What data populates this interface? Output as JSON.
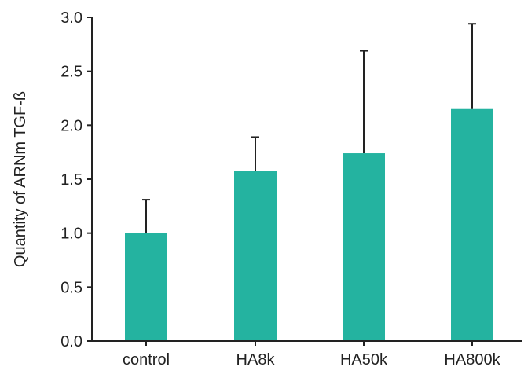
{
  "chart_data": {
    "type": "bar",
    "title": "",
    "xlabel": "",
    "ylabel": "Quantity of ARNm TGF-ß",
    "categories": [
      "control",
      "HA8k",
      "HA50k",
      "HA800k"
    ],
    "values": [
      1.0,
      1.58,
      1.74,
      2.15
    ],
    "error_upper": [
      0.31,
      0.31,
      0.95,
      0.79
    ],
    "ylim": [
      0,
      3.0
    ],
    "yticks": [
      0.0,
      0.5,
      1.0,
      1.5,
      2.0,
      2.5,
      3.0
    ],
    "ytick_labels": [
      "0.0",
      "0.5",
      "1.0",
      "1.5",
      "2.0",
      "2.5",
      "3.0"
    ],
    "bar_color": "#24b3a0",
    "axis_color": "#222222",
    "grid": false,
    "legend": "none"
  }
}
